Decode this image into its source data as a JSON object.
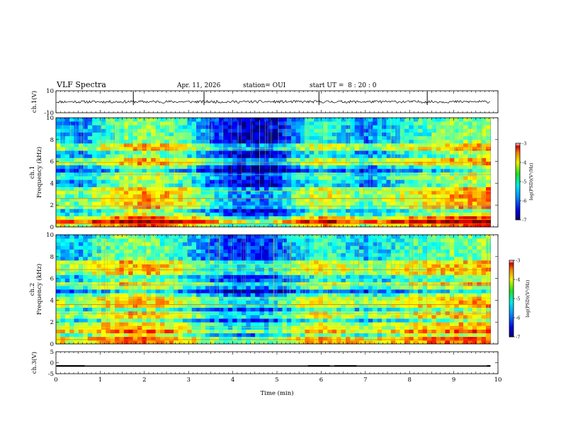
{
  "header": {
    "title": "VLF Spectra",
    "date": "Apr. 11, 2026",
    "station": "station= OUI",
    "start_time": "start UT =  8 : 20 : 0"
  },
  "chart_data": [
    {
      "id": "ch1-waveform",
      "type": "line",
      "ylabel": "ch.1(V)",
      "ylim": [
        -10,
        10
      ],
      "yticks": [
        "10",
        "-10"
      ],
      "xlim": [
        0,
        10
      ],
      "data_extent_x": [
        0,
        9.83
      ],
      "baseline": 0,
      "noise_amplitude": 1.2,
      "spike_times": [
        1.75,
        3.35,
        5.95,
        8.4
      ]
    },
    {
      "id": "ch1-spectrogram",
      "type": "heatmap",
      "ylabel_channel": "ch.1",
      "ylabel": "Frequency (kHz)",
      "ylim": [
        0,
        10
      ],
      "yticks": [
        "0",
        "2",
        "4",
        "6",
        "8",
        "10"
      ],
      "xlim": [
        0,
        10
      ],
      "data_extent_x": [
        0,
        9.83
      ],
      "colorbar": {
        "label": "log(PSD)(V²/Hz)",
        "range": [
          -7,
          -3
        ],
        "ticks": [
          "-3",
          "-4",
          "-5",
          "-6",
          "-7"
        ]
      },
      "level_profile": [
        [
          0.0,
          -5.6
        ],
        [
          0.5,
          -6.0
        ],
        [
          1.0,
          -5.5
        ],
        [
          1.5,
          -5.1
        ],
        [
          2.0,
          -4.9
        ],
        [
          2.5,
          -5.1
        ],
        [
          3.0,
          -5.4
        ],
        [
          3.5,
          -6.1
        ],
        [
          4.0,
          -6.6
        ],
        [
          4.6,
          -6.8
        ],
        [
          5.0,
          -6.6
        ],
        [
          5.5,
          -5.8
        ],
        [
          6.0,
          -5.3
        ],
        [
          6.5,
          -5.6
        ],
        [
          7.0,
          -6.0
        ],
        [
          8.0,
          -5.4
        ],
        [
          9.0,
          -5.0
        ],
        [
          10.0,
          -4.8
        ]
      ],
      "tones_khz": [
        0.3,
        0.7,
        1.9,
        2.6,
        3.3,
        4.8,
        5.9,
        7.2
      ],
      "impulse_density": 0.6
    },
    {
      "id": "ch2-spectrogram",
      "type": "heatmap",
      "ylabel_channel": "ch.2",
      "ylabel": "Frequency (kHz)",
      "ylim": [
        0,
        10
      ],
      "yticks": [
        "0",
        "2",
        "4",
        "6",
        "8",
        "10"
      ],
      "xlim": [
        0,
        10
      ],
      "data_extent_x": [
        0,
        9.83
      ],
      "colorbar": {
        "label": "log(PSD)(V²/Hz)",
        "range": [
          -7,
          -3
        ],
        "ticks": [
          "-3",
          "-4",
          "-5",
          "-6",
          "-7"
        ]
      },
      "level_profile": [
        [
          0.0,
          -5.5
        ],
        [
          0.5,
          -5.8
        ],
        [
          1.0,
          -5.3
        ],
        [
          1.5,
          -5.0
        ],
        [
          2.0,
          -5.0
        ],
        [
          2.5,
          -5.2
        ],
        [
          3.0,
          -5.6
        ],
        [
          3.5,
          -6.1
        ],
        [
          4.0,
          -6.3
        ],
        [
          4.6,
          -6.4
        ],
        [
          5.0,
          -6.2
        ],
        [
          5.5,
          -5.6
        ],
        [
          6.0,
          -5.3
        ],
        [
          6.5,
          -5.5
        ],
        [
          7.0,
          -5.8
        ],
        [
          8.0,
          -5.3
        ],
        [
          9.0,
          -5.1
        ],
        [
          10.0,
          -4.9
        ]
      ],
      "tones_khz": [
        0.4,
        1.5,
        2.8,
        3.6,
        4.2,
        5.4,
        6.8,
        7.3
      ],
      "impulse_density": 0.6
    },
    {
      "id": "ch3-waveform",
      "type": "line",
      "ylabel": "ch.3(V)",
      "ylim": [
        -5,
        5
      ],
      "yticks": [
        "5",
        "0",
        "-5"
      ],
      "xlim": [
        0,
        10
      ],
      "data_extent_x": [
        0,
        9.83
      ],
      "xlabel": "Time (min)",
      "xticks": [
        "0",
        "1",
        "2",
        "3",
        "4",
        "5",
        "6",
        "7",
        "8",
        "9",
        "10"
      ],
      "baseline": -1.5,
      "pulse_level": -1.1,
      "pulse_segments": [
        [
          0.02,
          0.65
        ],
        [
          5.7,
          6.2
        ],
        [
          6.3,
          6.8
        ],
        [
          9.75,
          9.83
        ]
      ]
    }
  ]
}
